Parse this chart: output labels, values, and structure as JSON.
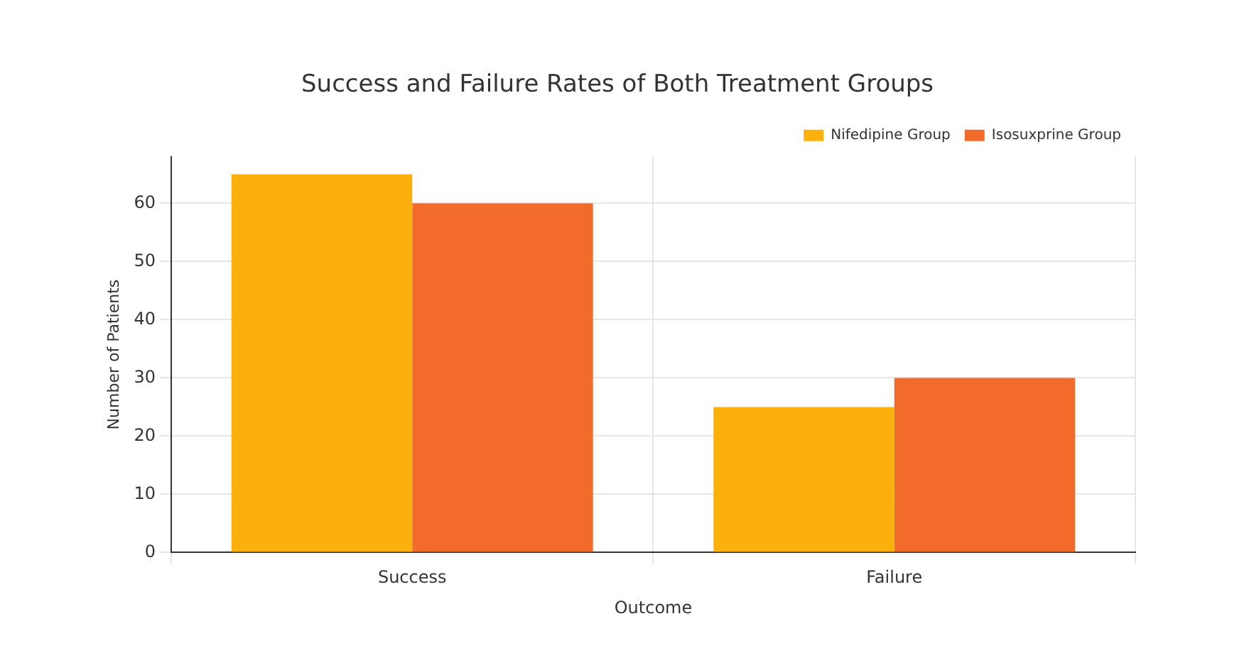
{
  "chart_data": {
    "type": "bar",
    "title": "Success and Failure Rates of Both Treatment Groups",
    "xlabel": "Outcome",
    "ylabel": "Number of Patients",
    "categories": [
      "Success",
      "Failure"
    ],
    "series": [
      {
        "name": "Nifedipine Group",
        "color": "#fbb00e",
        "values": [
          65,
          25
        ]
      },
      {
        "name": "Isosuxprine Group",
        "color": "#f26b2a",
        "values": [
          60,
          30
        ]
      }
    ],
    "ylim": [
      0,
      68
    ],
    "yticks": [
      0,
      10,
      20,
      30,
      40,
      50,
      60
    ],
    "grid": true,
    "legend": "top right"
  }
}
